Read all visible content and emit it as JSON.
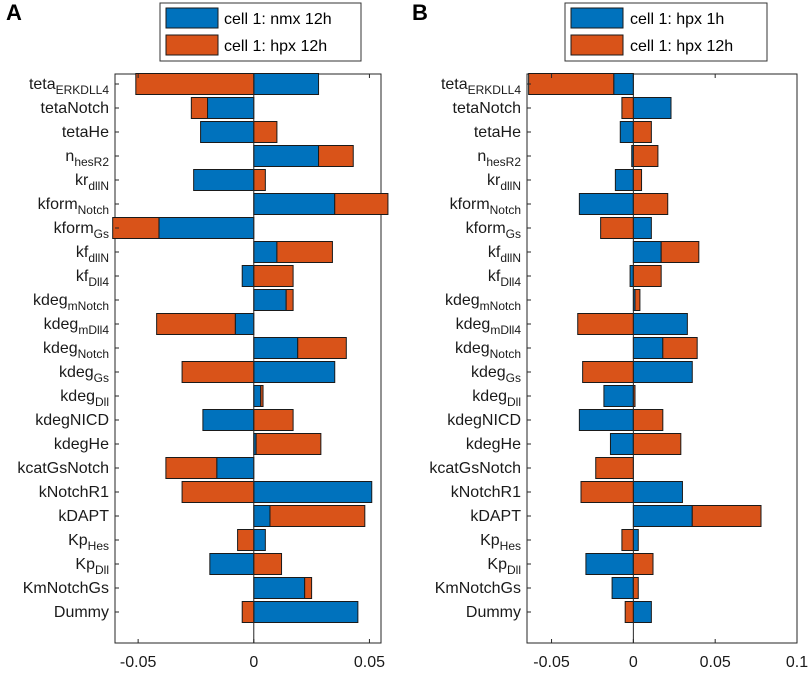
{
  "chart_data": [
    {
      "type": "bar",
      "orientation": "horizontal",
      "stacking": "diverging",
      "panel_letter": "A",
      "categories": [
        {
          "base": "teta",
          "sub": "ERKDLL4"
        },
        {
          "base": "tetaNotch",
          "sub": ""
        },
        {
          "base": "tetaHe",
          "sub": ""
        },
        {
          "base": "n",
          "sub": "hesR2"
        },
        {
          "base": "kr",
          "sub": "dllN"
        },
        {
          "base": "kform",
          "sub": "Notch"
        },
        {
          "base": "kform",
          "sub": "Gs"
        },
        {
          "base": "kf",
          "sub": "dllN"
        },
        {
          "base": "kf",
          "sub": "Dll4"
        },
        {
          "base": "kdeg",
          "sub": "mNotch"
        },
        {
          "base": "kdeg",
          "sub": "mDll4"
        },
        {
          "base": "kdeg",
          "sub": "Notch"
        },
        {
          "base": "kdeg",
          "sub": "Gs"
        },
        {
          "base": "kdeg",
          "sub": "Dll"
        },
        {
          "base": "kdegNICD",
          "sub": ""
        },
        {
          "base": "kdegHe",
          "sub": ""
        },
        {
          "base": "kcatGsNotch",
          "sub": ""
        },
        {
          "base": "kNotchR1",
          "sub": ""
        },
        {
          "base": "kDAPT",
          "sub": ""
        },
        {
          "base": "Kp",
          "sub": "Hes"
        },
        {
          "base": "Kp",
          "sub": "Dll"
        },
        {
          "base": "KmNotchGs",
          "sub": ""
        },
        {
          "base": "Dummy",
          "sub": ""
        }
      ],
      "series": [
        {
          "name": "cell 1: nmx 12h",
          "color": "#0072BD",
          "values": [
            0.028,
            -0.02,
            -0.023,
            0.028,
            -0.026,
            0.035,
            -0.041,
            0.01,
            -0.005,
            0.014,
            -0.008,
            0.019,
            0.035,
            0.003,
            -0.022,
            0.001,
            -0.016,
            0.051,
            0.007,
            0.005,
            -0.019,
            0.022,
            0.045
          ]
        },
        {
          "name": "cell 1: hpx 12h",
          "color": "#D95319",
          "values": [
            -0.051,
            -0.007,
            0.01,
            0.015,
            0.005,
            0.023,
            -0.02,
            0.024,
            0.017,
            0.003,
            -0.034,
            0.021,
            -0.031,
            0.001,
            0.017,
            0.028,
            -0.022,
            -0.031,
            0.041,
            -0.007,
            0.012,
            0.003,
            -0.005
          ]
        }
      ],
      "xlim": [
        -0.06,
        0.055
      ],
      "xticks": [
        -0.05,
        0,
        0.05
      ],
      "xticklabels": [
        "-0.05",
        "0",
        "0.05"
      ],
      "legend_placement": "top"
    },
    {
      "type": "bar",
      "orientation": "horizontal",
      "stacking": "diverging",
      "panel_letter": "B",
      "categories": [
        {
          "base": "teta",
          "sub": "ERKDLL4"
        },
        {
          "base": "tetaNotch",
          "sub": ""
        },
        {
          "base": "tetaHe",
          "sub": ""
        },
        {
          "base": "n",
          "sub": "hesR2"
        },
        {
          "base": "kr",
          "sub": "dllN"
        },
        {
          "base": "kform",
          "sub": "Notch"
        },
        {
          "base": "kform",
          "sub": "Gs"
        },
        {
          "base": "kf",
          "sub": "dllN"
        },
        {
          "base": "kf",
          "sub": "Dll4"
        },
        {
          "base": "kdeg",
          "sub": "mNotch"
        },
        {
          "base": "kdeg",
          "sub": "mDll4"
        },
        {
          "base": "kdeg",
          "sub": "Notch"
        },
        {
          "base": "kdeg",
          "sub": "Gs"
        },
        {
          "base": "kdeg",
          "sub": "Dll"
        },
        {
          "base": "kdegNICD",
          "sub": ""
        },
        {
          "base": "kdegHe",
          "sub": ""
        },
        {
          "base": "kcatGsNotch",
          "sub": ""
        },
        {
          "base": "kNotchR1",
          "sub": ""
        },
        {
          "base": "kDAPT",
          "sub": ""
        },
        {
          "base": "Kp",
          "sub": "Hes"
        },
        {
          "base": "Kp",
          "sub": "Dll"
        },
        {
          "base": "KmNotchGs",
          "sub": ""
        },
        {
          "base": "Dummy",
          "sub": ""
        }
      ],
      "series": [
        {
          "name": "cell 1: hpx 1h",
          "color": "#0072BD",
          "values": [
            -0.012,
            0.023,
            -0.008,
            -0.001,
            -0.011,
            -0.033,
            0.011,
            0.017,
            -0.002,
            0.001,
            0.033,
            0.018,
            0.036,
            -0.018,
            -0.033,
            -0.014,
            0.0,
            0.03,
            0.036,
            0.003,
            -0.029,
            -0.013,
            0.011
          ]
        },
        {
          "name": "cell 1: hpx 12h",
          "color": "#D95319",
          "values": [
            -0.052,
            -0.007,
            0.011,
            0.015,
            0.005,
            0.021,
            -0.02,
            0.023,
            0.017,
            0.003,
            -0.034,
            0.021,
            -0.031,
            0.001,
            0.018,
            0.029,
            -0.023,
            -0.032,
            0.042,
            -0.007,
            0.012,
            0.003,
            -0.005
          ]
        }
      ],
      "xlim": [
        -0.065,
        0.1
      ],
      "xticks": [
        -0.05,
        0,
        0.05,
        0.1
      ],
      "xticklabels": [
        "-0.05",
        "0",
        "0.05",
        "0.1"
      ],
      "legend_placement": "top"
    }
  ]
}
